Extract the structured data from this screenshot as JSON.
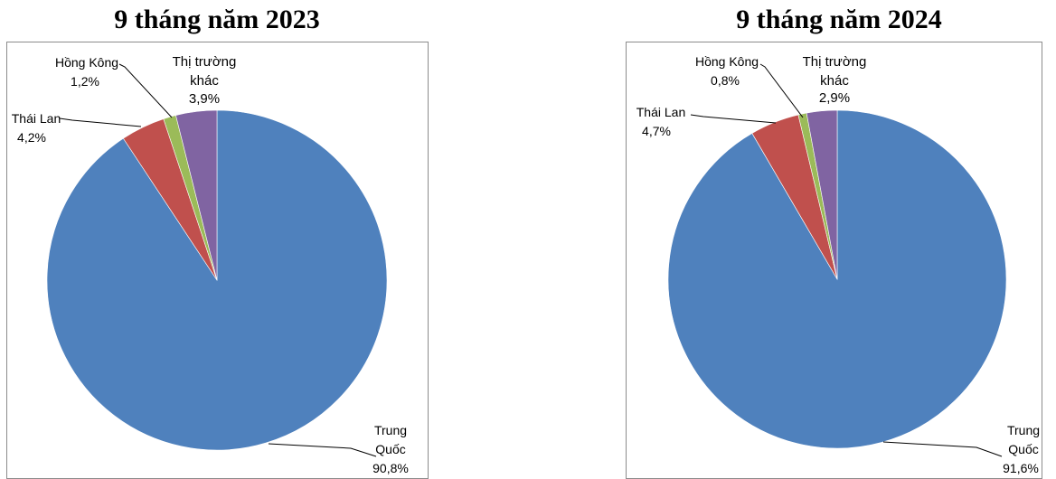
{
  "chart_data": [
    {
      "type": "pie",
      "title": "9 tháng năm 2023",
      "slices": [
        {
          "label_lines": [
            "Trung",
            "Quốc"
          ],
          "value_text": "90,8%",
          "value": 90.8,
          "color": "#4F81BD"
        },
        {
          "label_lines": [
            "Thái Lan"
          ],
          "value_text": "4,2%",
          "value": 4.2,
          "color": "#C0504D"
        },
        {
          "label_lines": [
            "Hồng Kông"
          ],
          "value_text": "1,2%",
          "value": 1.2,
          "color": "#9BBB59"
        },
        {
          "label_lines": [
            "Thị trường",
            "khác"
          ],
          "value_text": "3,9%",
          "value": 3.9,
          "color": "#8064A2"
        }
      ]
    },
    {
      "type": "pie",
      "title": "9 tháng năm 2024",
      "slices": [
        {
          "label_lines": [
            "Trung",
            "Quốc"
          ],
          "value_text": "91,6%",
          "value": 91.6,
          "color": "#4F81BD"
        },
        {
          "label_lines": [
            "Thái Lan"
          ],
          "value_text": "4,7%",
          "value": 4.7,
          "color": "#C0504D"
        },
        {
          "label_lines": [
            "Hồng Kông"
          ],
          "value_text": "0,8%",
          "value": 0.8,
          "color": "#9BBB59"
        },
        {
          "label_lines": [
            "Thị trường",
            "khác"
          ],
          "value_text": "2,9%",
          "value": 2.9,
          "color": "#8064A2"
        }
      ]
    }
  ]
}
